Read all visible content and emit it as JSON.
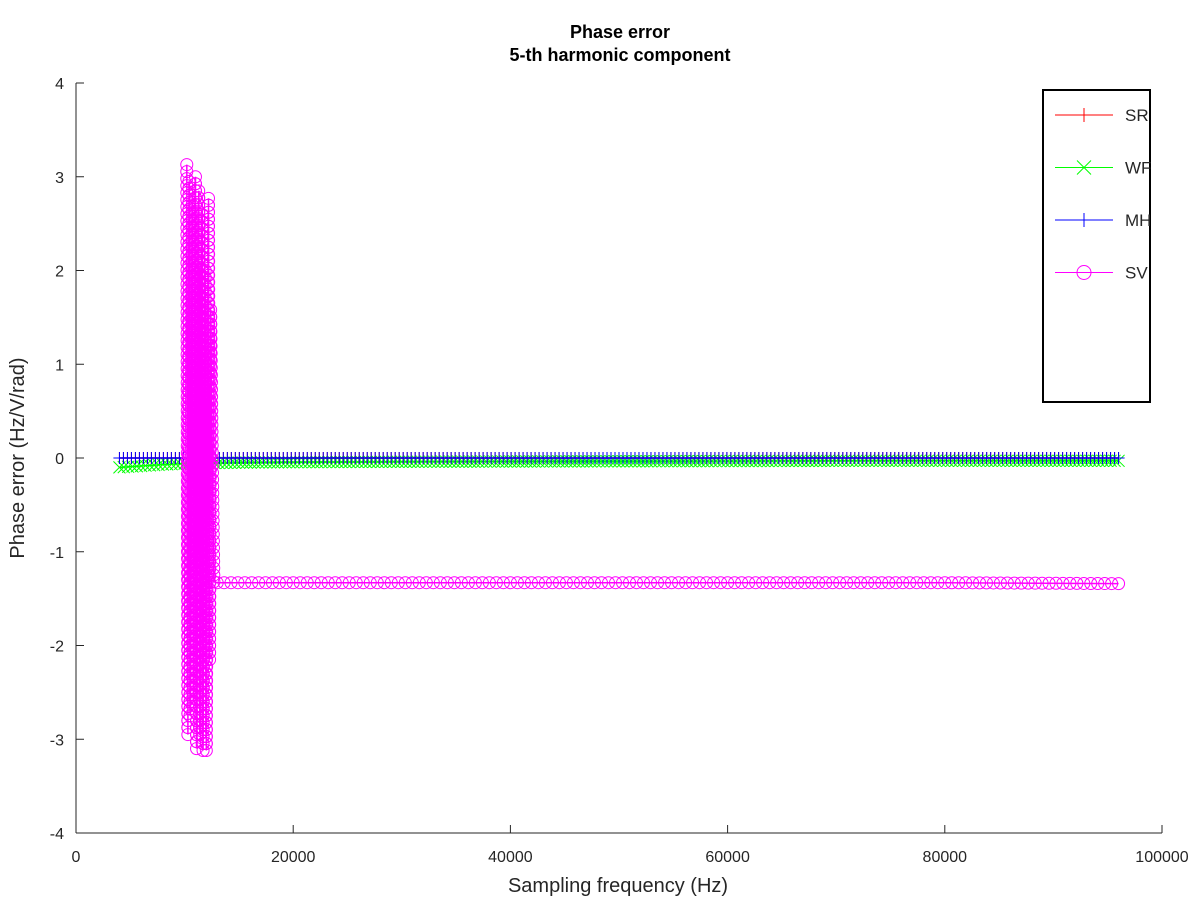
{
  "chart_data": {
    "type": "line",
    "title": "Phase error",
    "subtitle": "5-th harmonic component",
    "xlabel": "Sampling frequency (Hz)",
    "ylabel": "Phase error (Hz/V/rad)",
    "xlim": [
      0,
      100000
    ],
    "ylim": [
      -4,
      4
    ],
    "xticks": [
      0,
      20000,
      40000,
      60000,
      80000,
      100000
    ],
    "yticks": [
      -4,
      -3,
      -2,
      -1,
      0,
      1,
      2,
      3,
      4
    ],
    "xtick_labels": [
      "0",
      "20000",
      "40000",
      "60000",
      "80000",
      "100000"
    ],
    "ytick_labels": [
      "-4",
      "-3",
      "-2",
      "-1",
      "0",
      "1",
      "2",
      "3",
      "4"
    ],
    "grid": false,
    "legend_position": "top-right",
    "series": [
      {
        "name": "SR",
        "color": "#ff0000",
        "marker": "plus",
        "x": [
          4000,
          96000
        ],
        "y": [
          0.0,
          0.0
        ]
      },
      {
        "name": "WF",
        "color": "#00ff00",
        "marker": "cross",
        "x": [
          4000,
          6000,
          8000,
          10000,
          12000,
          15000,
          20000,
          30000,
          50000,
          70000,
          96000
        ],
        "y": [
          -0.1,
          -0.085,
          -0.07,
          -0.06,
          -0.055,
          -0.05,
          -0.045,
          -0.04,
          -0.035,
          -0.03,
          -0.03
        ]
      },
      {
        "name": "MH",
        "color": "#0000ff",
        "marker": "plus",
        "x": [
          4000,
          96000
        ],
        "y": [
          0.0,
          0.0
        ]
      },
      {
        "name": "SV",
        "color": "#ff00ff",
        "marker": "circle",
        "x": [
          10200,
          10300,
          10400,
          10500,
          10700,
          10800,
          11000,
          11100,
          11300,
          11400,
          11600,
          11700,
          11900,
          12000,
          12200,
          12300,
          12400,
          12500,
          12600,
          12700,
          13000,
          20000,
          40000,
          60000,
          80000,
          96000
        ],
        "y": [
          3.13,
          -2.95,
          2.95,
          -2.75,
          2.7,
          -2.6,
          3.0,
          -3.1,
          2.85,
          -2.95,
          2.6,
          -3.12,
          2.0,
          -3.12,
          2.77,
          -2.15,
          1.58,
          0.5,
          -0.45,
          -1.32,
          -1.33,
          -1.33,
          -1.33,
          -1.33,
          -1.33,
          -1.34
        ]
      }
    ]
  }
}
